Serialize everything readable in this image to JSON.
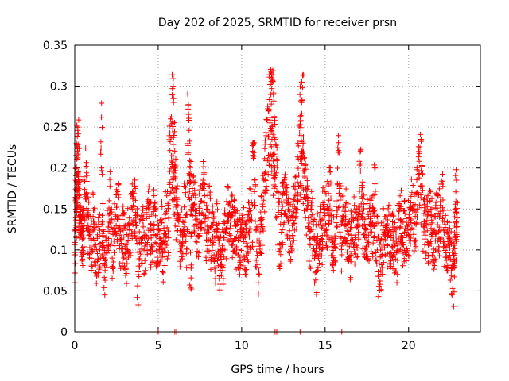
{
  "chart_data": {
    "type": "scatter",
    "title": "Day 202 of 2025, SRMTID for receiver prsn",
    "xlabel": "GPS time / hours",
    "ylabel": "SRMTID / TECUs",
    "xlim": [
      0,
      24.3
    ],
    "ylim": [
      0,
      0.35
    ],
    "x_ticks": [
      0,
      5,
      10,
      15,
      20
    ],
    "x_tick_labels": [
      "0",
      "5",
      "10",
      "15",
      "20"
    ],
    "y_ticks": [
      0,
      0.05,
      0.1,
      0.15,
      0.2,
      0.25,
      0.3,
      0.35
    ],
    "y_tick_labels": [
      "0",
      "0.05",
      "0.1",
      "0.15",
      "0.2",
      "0.25",
      "0.3",
      "0.35"
    ],
    "grid": true,
    "marker": "+",
    "color": "#ff0000",
    "point_count_note": "dense scatter of SRMTID samples across the day; representative points listed",
    "points": [
      [
        0.0,
        0.06
      ],
      [
        0.02,
        0.094
      ],
      [
        0.05,
        0.13
      ],
      [
        0.08,
        0.182
      ],
      [
        0.1,
        0.201
      ],
      [
        0.12,
        0.228
      ],
      [
        0.15,
        0.239
      ],
      [
        0.18,
        0.246
      ],
      [
        0.2,
        0.217
      ],
      [
        0.25,
        0.166
      ],
      [
        0.3,
        0.153
      ],
      [
        0.35,
        0.143
      ],
      [
        0.4,
        0.118
      ],
      [
        0.45,
        0.103
      ],
      [
        0.5,
        0.126
      ],
      [
        0.6,
        0.174
      ],
      [
        0.7,
        0.205
      ],
      [
        0.75,
        0.191
      ],
      [
        0.8,
        0.13
      ],
      [
        0.9,
        0.119
      ],
      [
        1.0,
        0.097
      ],
      [
        1.1,
        0.141
      ],
      [
        1.2,
        0.112
      ],
      [
        1.3,
        0.071
      ],
      [
        1.4,
        0.089
      ],
      [
        1.5,
        0.1
      ],
      [
        1.6,
        0.262
      ],
      [
        1.65,
        0.093
      ],
      [
        1.7,
        0.117
      ],
      [
        1.8,
        0.045
      ],
      [
        1.9,
        0.097
      ],
      [
        2.0,
        0.128
      ],
      [
        2.1,
        0.186
      ],
      [
        2.2,
        0.111
      ],
      [
        2.3,
        0.074
      ],
      [
        2.4,
        0.135
      ],
      [
        2.5,
        0.152
      ],
      [
        2.6,
        0.164
      ],
      [
        2.7,
        0.083
      ],
      [
        2.8,
        0.101
      ],
      [
        2.9,
        0.124
      ],
      [
        3.0,
        0.095
      ],
      [
        3.1,
        0.059
      ],
      [
        3.2,
        0.112
      ],
      [
        3.3,
        0.132
      ],
      [
        3.4,
        0.152
      ],
      [
        3.5,
        0.165
      ],
      [
        3.6,
        0.178
      ],
      [
        3.7,
        0.13
      ],
      [
        3.8,
        0.033
      ],
      [
        3.9,
        0.098
      ],
      [
        4.0,
        0.114
      ],
      [
        4.1,
        0.14
      ],
      [
        4.2,
        0.087
      ],
      [
        4.3,
        0.116
      ],
      [
        4.4,
        0.152
      ],
      [
        4.5,
        0.127
      ],
      [
        4.6,
        0.104
      ],
      [
        4.7,
        0.118
      ],
      [
        4.8,
        0.157
      ],
      [
        4.9,
        0.108
      ],
      [
        5.0,
        0.086
      ],
      [
        5.1,
        0.096
      ],
      [
        5.2,
        0.133
      ],
      [
        5.3,
        0.061
      ],
      [
        5.4,
        0.11
      ],
      [
        5.5,
        0.147
      ],
      [
        5.6,
        0.123
      ],
      [
        5.7,
        0.243
      ],
      [
        5.8,
        0.254
      ],
      [
        5.85,
        0.297
      ],
      [
        5.9,
        0.3
      ],
      [
        5.95,
        0.24
      ],
      [
        6.0,
        0.197
      ],
      [
        6.05,
        0.211
      ],
      [
        6.1,
        0.159
      ],
      [
        6.2,
        0.137
      ],
      [
        6.3,
        0.102
      ],
      [
        6.4,
        0.108
      ],
      [
        6.5,
        0.124
      ],
      [
        6.6,
        0.17
      ],
      [
        6.7,
        0.101
      ],
      [
        6.8,
        0.277
      ],
      [
        6.85,
        0.246
      ],
      [
        6.9,
        0.202
      ],
      [
        6.95,
        0.054
      ],
      [
        7.0,
        0.154
      ],
      [
        7.1,
        0.189
      ],
      [
        7.2,
        0.183
      ],
      [
        7.3,
        0.129
      ],
      [
        7.4,
        0.117
      ],
      [
        7.5,
        0.145
      ],
      [
        7.6,
        0.16
      ],
      [
        7.7,
        0.208
      ],
      [
        7.8,
        0.18
      ],
      [
        7.9,
        0.12
      ],
      [
        8.0,
        0.139
      ],
      [
        8.1,
        0.168
      ],
      [
        8.2,
        0.093
      ],
      [
        8.3,
        0.109
      ],
      [
        8.4,
        0.074
      ],
      [
        8.5,
        0.131
      ],
      [
        8.6,
        0.091
      ],
      [
        8.7,
        0.058
      ],
      [
        8.8,
        0.08
      ],
      [
        8.9,
        0.065
      ],
      [
        9.0,
        0.1
      ],
      [
        9.1,
        0.121
      ],
      [
        9.2,
        0.177
      ],
      [
        9.3,
        0.154
      ],
      [
        9.4,
        0.142
      ],
      [
        9.5,
        0.11
      ],
      [
        9.6,
        0.129
      ],
      [
        9.7,
        0.102
      ],
      [
        9.8,
        0.094
      ],
      [
        9.9,
        0.085
      ],
      [
        10.0,
        0.127
      ],
      [
        10.1,
        0.11
      ],
      [
        10.2,
        0.089
      ],
      [
        10.3,
        0.104
      ],
      [
        10.4,
        0.121
      ],
      [
        10.5,
        0.148
      ],
      [
        10.6,
        0.14
      ],
      [
        10.7,
        0.212
      ],
      [
        10.8,
        0.186
      ],
      [
        10.9,
        0.098
      ],
      [
        11.0,
        0.046
      ],
      [
        11.1,
        0.101
      ],
      [
        11.2,
        0.139
      ],
      [
        11.3,
        0.187
      ],
      [
        11.4,
        0.229
      ],
      [
        11.5,
        0.259
      ],
      [
        11.6,
        0.27
      ],
      [
        11.7,
        0.302
      ],
      [
        11.75,
        0.318
      ],
      [
        11.8,
        0.297
      ],
      [
        11.85,
        0.306
      ],
      [
        11.9,
        0.29
      ],
      [
        11.95,
        0.263
      ],
      [
        12.0,
        0.235
      ],
      [
        12.1,
        0.211
      ],
      [
        12.2,
        0.146
      ],
      [
        12.3,
        0.101
      ],
      [
        12.4,
        0.159
      ],
      [
        12.5,
        0.183
      ],
      [
        12.6,
        0.192
      ],
      [
        12.7,
        0.167
      ],
      [
        12.8,
        0.135
      ],
      [
        12.9,
        0.114
      ],
      [
        13.0,
        0.099
      ],
      [
        13.1,
        0.159
      ],
      [
        13.2,
        0.178
      ],
      [
        13.3,
        0.19
      ],
      [
        13.4,
        0.227
      ],
      [
        13.5,
        0.253
      ],
      [
        13.55,
        0.282
      ],
      [
        13.6,
        0.305
      ],
      [
        13.65,
        0.298
      ],
      [
        13.7,
        0.238
      ],
      [
        13.8,
        0.203
      ],
      [
        13.9,
        0.168
      ],
      [
        14.0,
        0.139
      ],
      [
        14.1,
        0.106
      ],
      [
        14.2,
        0.154
      ],
      [
        14.3,
        0.131
      ],
      [
        14.4,
        0.072
      ],
      [
        14.5,
        0.048
      ],
      [
        14.6,
        0.092
      ],
      [
        14.7,
        0.135
      ],
      [
        14.8,
        0.113
      ],
      [
        14.9,
        0.153
      ],
      [
        15.0,
        0.142
      ],
      [
        15.1,
        0.118
      ],
      [
        15.2,
        0.169
      ],
      [
        15.3,
        0.195
      ],
      [
        15.4,
        0.104
      ],
      [
        15.5,
        0.087
      ],
      [
        15.6,
        0.114
      ],
      [
        15.7,
        0.128
      ],
      [
        15.8,
        0.231
      ],
      [
        15.9,
        0.161
      ],
      [
        16.0,
        0.094
      ],
      [
        16.1,
        0.141
      ],
      [
        16.2,
        0.152
      ],
      [
        16.3,
        0.108
      ],
      [
        16.4,
        0.119
      ],
      [
        16.5,
        0.064
      ],
      [
        16.6,
        0.098
      ],
      [
        16.7,
        0.136
      ],
      [
        16.8,
        0.115
      ],
      [
        16.9,
        0.129
      ],
      [
        17.0,
        0.143
      ],
      [
        17.1,
        0.22
      ],
      [
        17.2,
        0.172
      ],
      [
        17.3,
        0.149
      ],
      [
        17.4,
        0.101
      ],
      [
        17.5,
        0.125
      ],
      [
        17.6,
        0.118
      ],
      [
        17.7,
        0.138
      ],
      [
        17.8,
        0.131
      ],
      [
        17.9,
        0.151
      ],
      [
        18.0,
        0.2
      ],
      [
        18.1,
        0.112
      ],
      [
        18.2,
        0.043
      ],
      [
        18.3,
        0.058
      ],
      [
        18.4,
        0.093
      ],
      [
        18.5,
        0.119
      ],
      [
        18.6,
        0.129
      ],
      [
        18.7,
        0.106
      ],
      [
        18.8,
        0.121
      ],
      [
        18.9,
        0.08
      ],
      [
        19.0,
        0.104
      ],
      [
        19.1,
        0.116
      ],
      [
        19.2,
        0.074
      ],
      [
        19.3,
        0.06
      ],
      [
        19.4,
        0.144
      ],
      [
        19.5,
        0.136
      ],
      [
        19.6,
        0.159
      ],
      [
        19.7,
        0.106
      ],
      [
        19.8,
        0.126
      ],
      [
        19.9,
        0.118
      ],
      [
        20.0,
        0.131
      ],
      [
        20.1,
        0.152
      ],
      [
        20.2,
        0.17
      ],
      [
        20.3,
        0.119
      ],
      [
        20.4,
        0.141
      ],
      [
        20.5,
        0.198
      ],
      [
        20.6,
        0.226
      ],
      [
        20.7,
        0.241
      ],
      [
        20.8,
        0.202
      ],
      [
        20.9,
        0.129
      ],
      [
        21.0,
        0.118
      ],
      [
        21.1,
        0.136
      ],
      [
        21.2,
        0.109
      ],
      [
        21.3,
        0.16
      ],
      [
        21.4,
        0.133
      ],
      [
        21.5,
        0.101
      ],
      [
        21.6,
        0.119
      ],
      [
        21.7,
        0.145
      ],
      [
        21.8,
        0.122
      ],
      [
        21.9,
        0.159
      ],
      [
        22.0,
        0.184
      ],
      [
        22.1,
        0.124
      ],
      [
        22.2,
        0.091
      ],
      [
        22.3,
        0.075
      ],
      [
        22.4,
        0.106
      ],
      [
        22.5,
        0.063
      ],
      [
        22.6,
        0.045
      ],
      [
        22.7,
        0.031
      ],
      [
        22.75,
        0.084
      ],
      [
        22.8,
        0.115
      ],
      [
        22.85,
        0.198
      ],
      [
        22.9,
        0.139
      ]
    ],
    "zero_points_x": [
      5.0,
      6.0,
      6.1,
      12.0,
      12.1,
      13.5,
      16.0
    ]
  }
}
